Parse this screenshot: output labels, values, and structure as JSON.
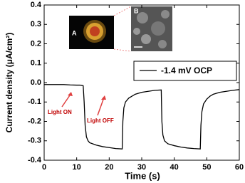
{
  "chart_data": {
    "type": "line",
    "x_label": "Time (s)",
    "y_label": "Current density (μA/cm²)",
    "xlim": [
      0,
      60
    ],
    "xticks": [
      0,
      10,
      20,
      30,
      40,
      50,
      60
    ],
    "ylim": [
      -0.4,
      0.4
    ],
    "yticks": [
      -0.4,
      -0.3,
      -0.2,
      -0.1,
      {
        "value": 0,
        "label": "0.0"
      },
      0.1,
      0.2,
      0.3,
      0.4
    ],
    "legend_position": "upper right",
    "annotations": [
      "Light ON",
      "Light OFF"
    ],
    "inset_labels": [
      "A",
      "B"
    ],
    "x": [
      0,
      2,
      4,
      6,
      8,
      10,
      11,
      11.5,
      12,
      12.3,
      12.6,
      13,
      13.5,
      14,
      16,
      18,
      20,
      22,
      24,
      24.2,
      24.5,
      25,
      26,
      27,
      28,
      30,
      32,
      34,
      36,
      36.2,
      36.5,
      37,
      38,
      40,
      42,
      44,
      46,
      48,
      48.2,
      48.5,
      49,
      50,
      51,
      52,
      54,
      56,
      58,
      60
    ],
    "series": [
      {
        "name": "-1.4 mV OCP",
        "color": "#000000",
        "values": [
          -0.01,
          -0.01,
          -0.01,
          -0.01,
          -0.012,
          -0.013,
          -0.013,
          -0.014,
          -0.016,
          -0.1,
          -0.22,
          -0.28,
          -0.3,
          -0.31,
          -0.322,
          -0.33,
          -0.335,
          -0.34,
          -0.342,
          -0.2,
          -0.13,
          -0.1,
          -0.08,
          -0.07,
          -0.06,
          -0.05,
          -0.045,
          -0.04,
          -0.038,
          -0.2,
          -0.27,
          -0.3,
          -0.315,
          -0.325,
          -0.332,
          -0.337,
          -0.34,
          -0.342,
          -0.22,
          -0.15,
          -0.11,
          -0.085,
          -0.07,
          -0.06,
          -0.05,
          -0.045,
          -0.04,
          -0.036
        ]
      }
    ]
  }
}
